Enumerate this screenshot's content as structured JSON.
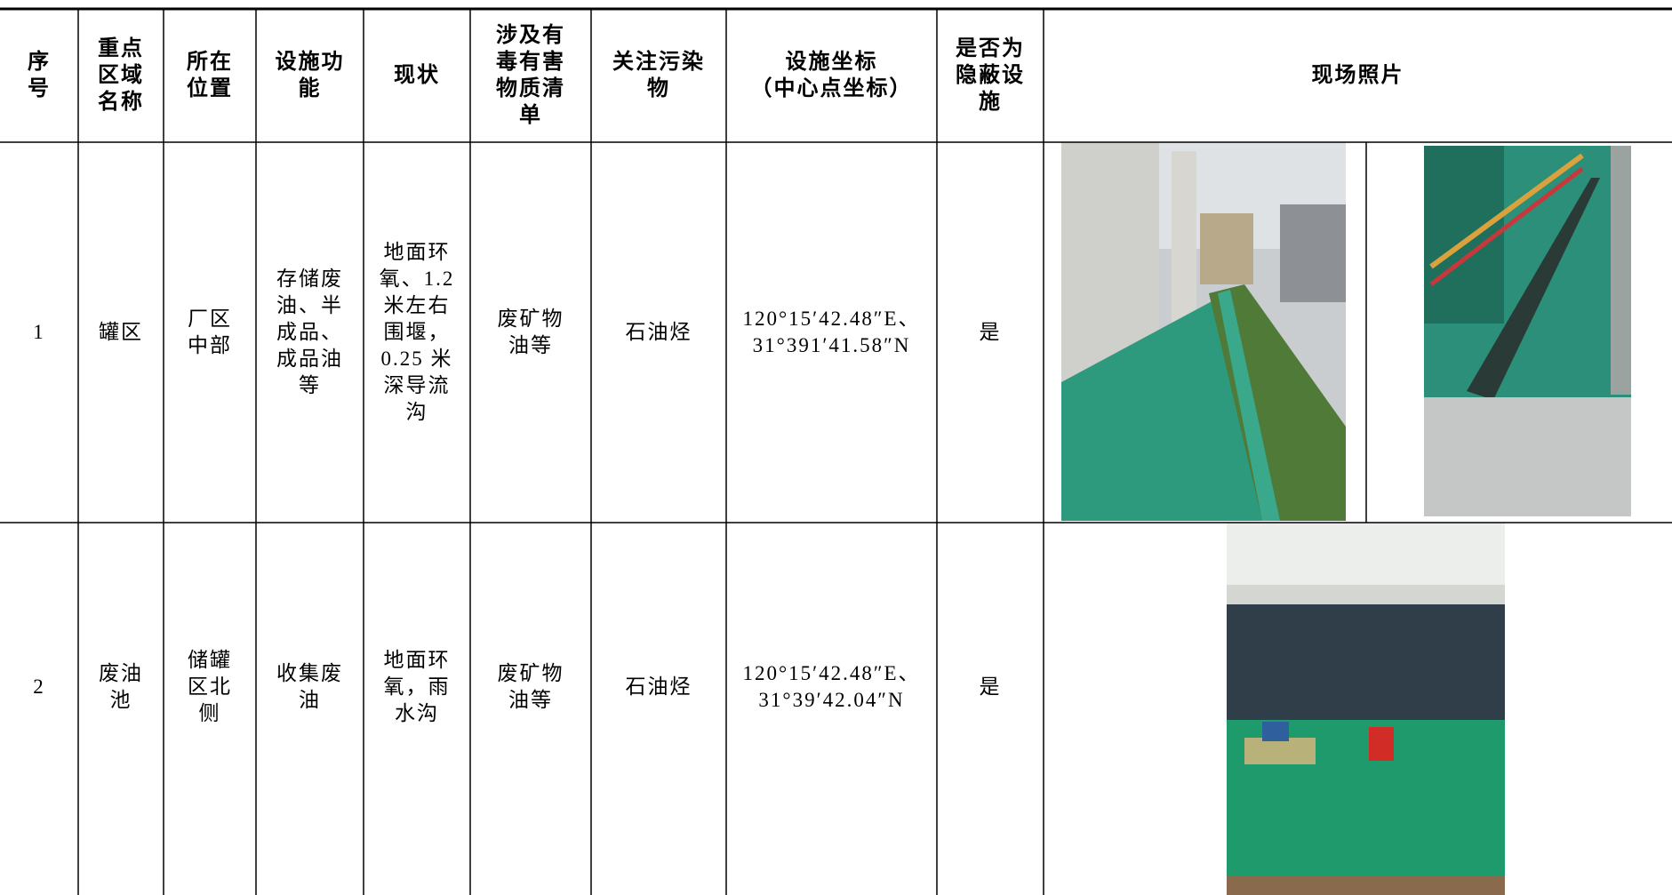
{
  "table": {
    "header": [
      [
        "序",
        "号"
      ],
      [
        "重点",
        "区域",
        "名称"
      ],
      [
        "所在",
        "位置"
      ],
      [
        "设施功",
        "能"
      ],
      [
        "现状"
      ],
      [
        "涉及有",
        "毒有害",
        "物质清",
        "单"
      ],
      [
        "关注污染",
        "物"
      ],
      [
        "设施坐标",
        "（中心点坐标）"
      ],
      [
        "是否为",
        "隐蔽设",
        "施"
      ],
      [
        "现场照片"
      ]
    ],
    "rows": [
      [
        [
          "1"
        ],
        [
          "罐区"
        ],
        [
          "厂区",
          "中部"
        ],
        [
          "存储废",
          "油、半",
          "成品、",
          "成品油",
          "等"
        ],
        [
          "地面环",
          "氧、1.2",
          "米左右",
          "围堰，",
          "0.25 米",
          "深导流",
          "沟"
        ],
        [
          "废矿物",
          "油等"
        ],
        [
          "石油烃"
        ],
        [
          "120°15′42.48″E、",
          "31°391′41.58″N"
        ],
        [
          "是"
        ]
      ],
      [
        [
          "2"
        ],
        [
          "废油",
          "池"
        ],
        [
          "储罐",
          "区北",
          "侧"
        ],
        [
          "收集废",
          "油"
        ],
        [
          "地面环",
          "氧，雨",
          "水沟"
        ],
        [
          "废矿物",
          "油等"
        ],
        [
          "石油烃"
        ],
        [
          "120°15′42.48″E、",
          "31°39′42.04″N"
        ],
        [
          "是"
        ]
      ]
    ]
  }
}
